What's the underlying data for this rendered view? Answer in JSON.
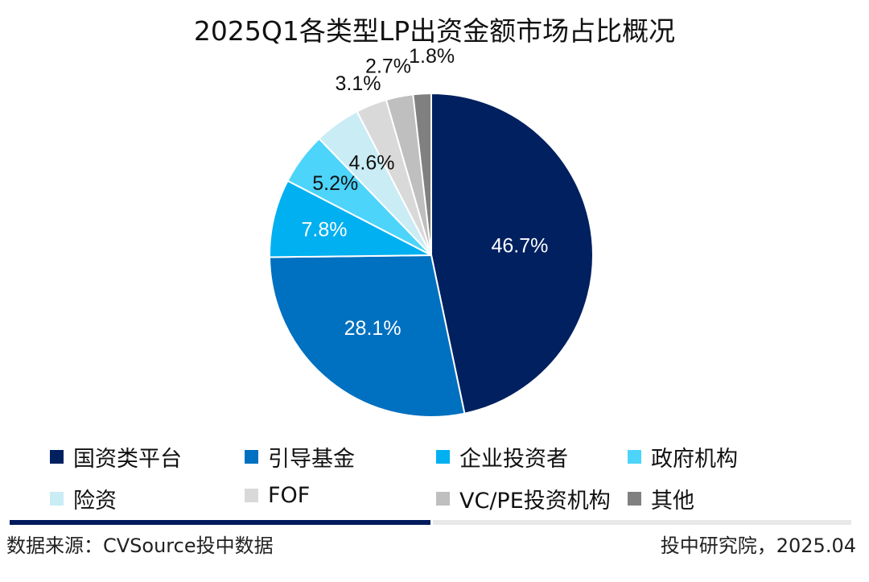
{
  "chart_data": {
    "type": "pie",
    "title": "2025Q1各类型LP出资金额市场占比概况",
    "categories": [
      "国资类平台",
      "引导基金",
      "企业投资者",
      "政府机构",
      "险资",
      "FOF",
      "VC/PE投资机构",
      "其他"
    ],
    "values": [
      46.7,
      28.1,
      7.8,
      5.2,
      4.6,
      3.1,
      2.7,
      1.8
    ],
    "labels": [
      "46.7%",
      "28.1%",
      "7.8%",
      "5.2%",
      "4.6%",
      "3.1%",
      "2.7%",
      "1.8%"
    ],
    "colors": [
      "#002060",
      "#0070c0",
      "#00b0f0",
      "#4dd4fa",
      "#c9ecf5",
      "#d9d9d9",
      "#bfbfbf",
      "#808080"
    ],
    "label_colors": [
      "#ffffff",
      "#ffffff",
      "#ffffff",
      "#111111",
      "#111111",
      "#111111",
      "#111111",
      "#111111"
    ],
    "start_angle": "12 o'clock",
    "direction": "clockwise",
    "legend_position": "bottom"
  },
  "footer": {
    "source": "数据来源：CVSource投中数据",
    "publisher": "投中研究院，2025.04"
  }
}
